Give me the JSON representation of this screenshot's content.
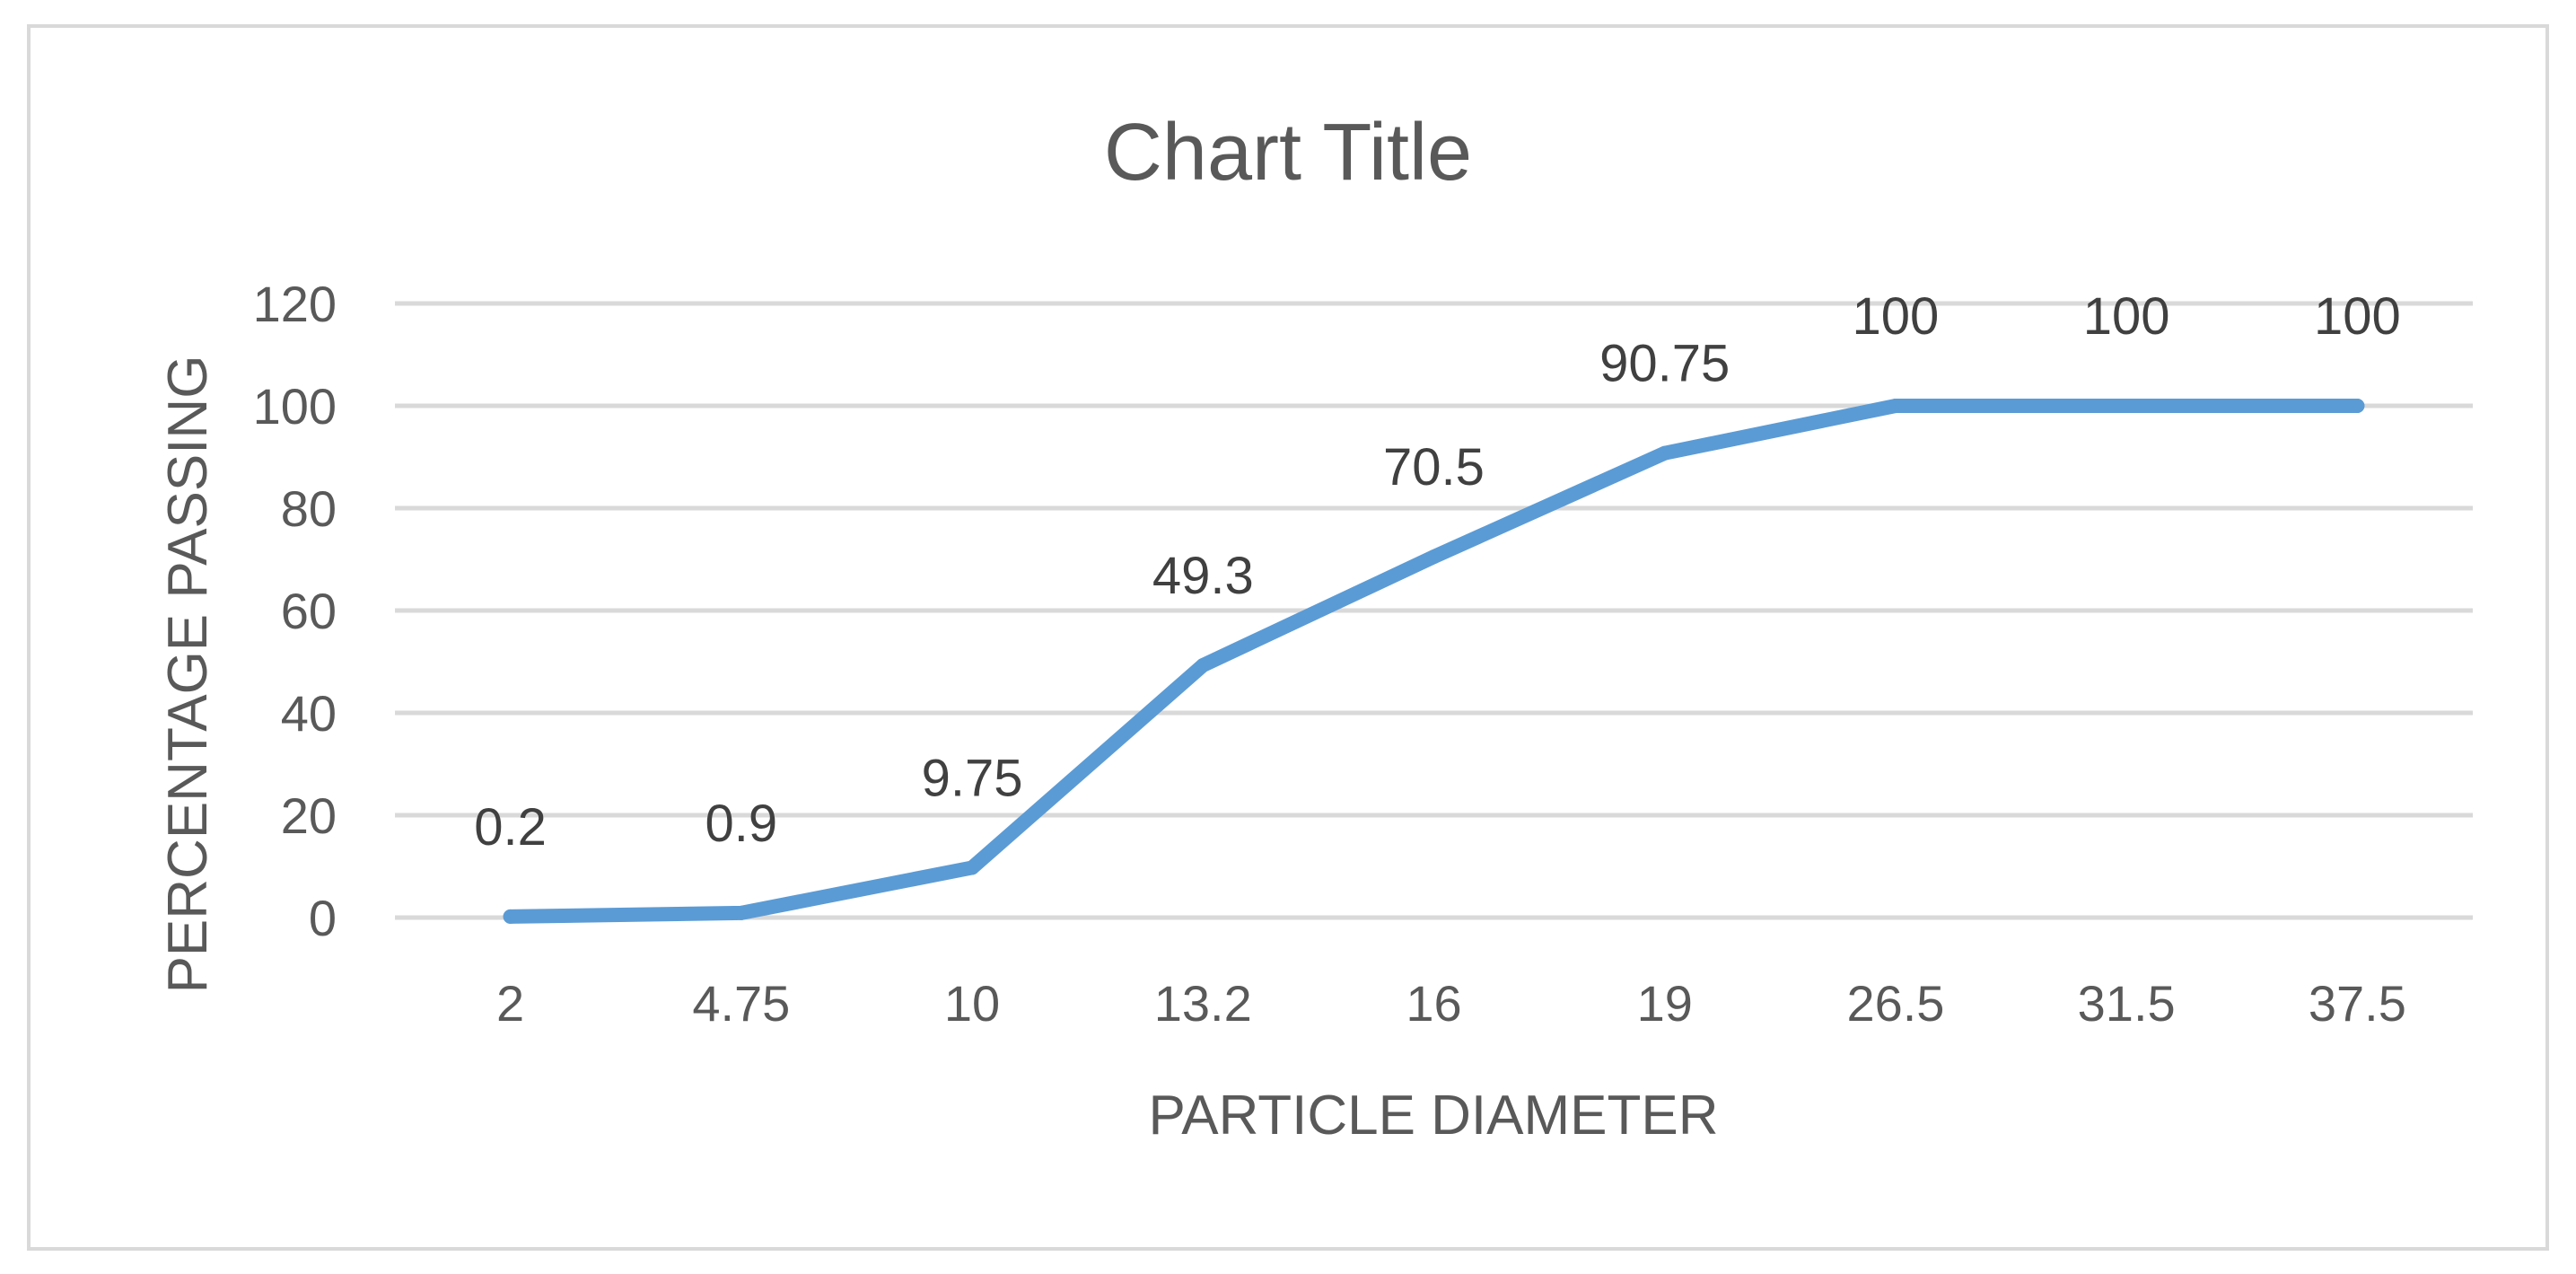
{
  "chart_data": {
    "type": "line",
    "title": "Chart Title",
    "xlabel": "PARTICLE DIAMETER",
    "ylabel": "PERCENTAGE PASSING",
    "categories": [
      "2",
      "4.75",
      "10",
      "13.2",
      "16",
      "19",
      "26.5",
      "31.5",
      "37.5"
    ],
    "series": [
      {
        "values": [
          0.2,
          0.9,
          9.75,
          49.3,
          70.5,
          90.75,
          100,
          100,
          100
        ],
        "labels": [
          "0.2",
          "0.9",
          "9.75",
          "49.3",
          "70.5",
          "90.75",
          "100",
          "100",
          "100"
        ],
        "color": "#5b9bd5"
      }
    ],
    "ylim": [
      0,
      120
    ],
    "yticks": [
      "0",
      "20",
      "40",
      "60",
      "80",
      "100",
      "120"
    ],
    "grid": true,
    "legend": "none"
  }
}
